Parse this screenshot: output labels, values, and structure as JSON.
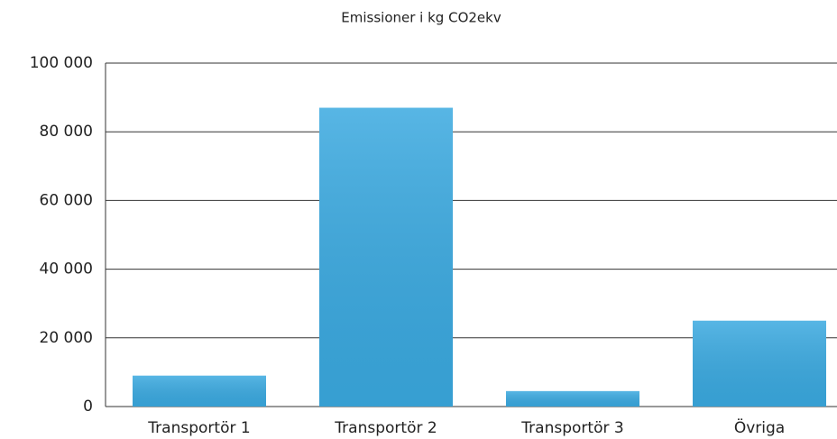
{
  "chart_data": {
    "type": "bar",
    "title": "Emissioner i kg CO2ekv",
    "categories": [
      "Transportör 1",
      "Transportör 2",
      "Transportör 3",
      "Övriga"
    ],
    "values": [
      9000,
      87000,
      4500,
      25000
    ],
    "color": "#3aa9e0",
    "ylim": [
      0,
      100000
    ],
    "yticks": [
      0,
      {
        "value": 20000,
        "label": "20 000"
      },
      {
        "value": 40000,
        "label": "40 000"
      },
      {
        "value": 60000,
        "label": "60 000"
      },
      {
        "value": 80000,
        "label": "80 000"
      },
      {
        "value": 100000,
        "label": "100 000"
      }
    ],
    "grid": true
  }
}
